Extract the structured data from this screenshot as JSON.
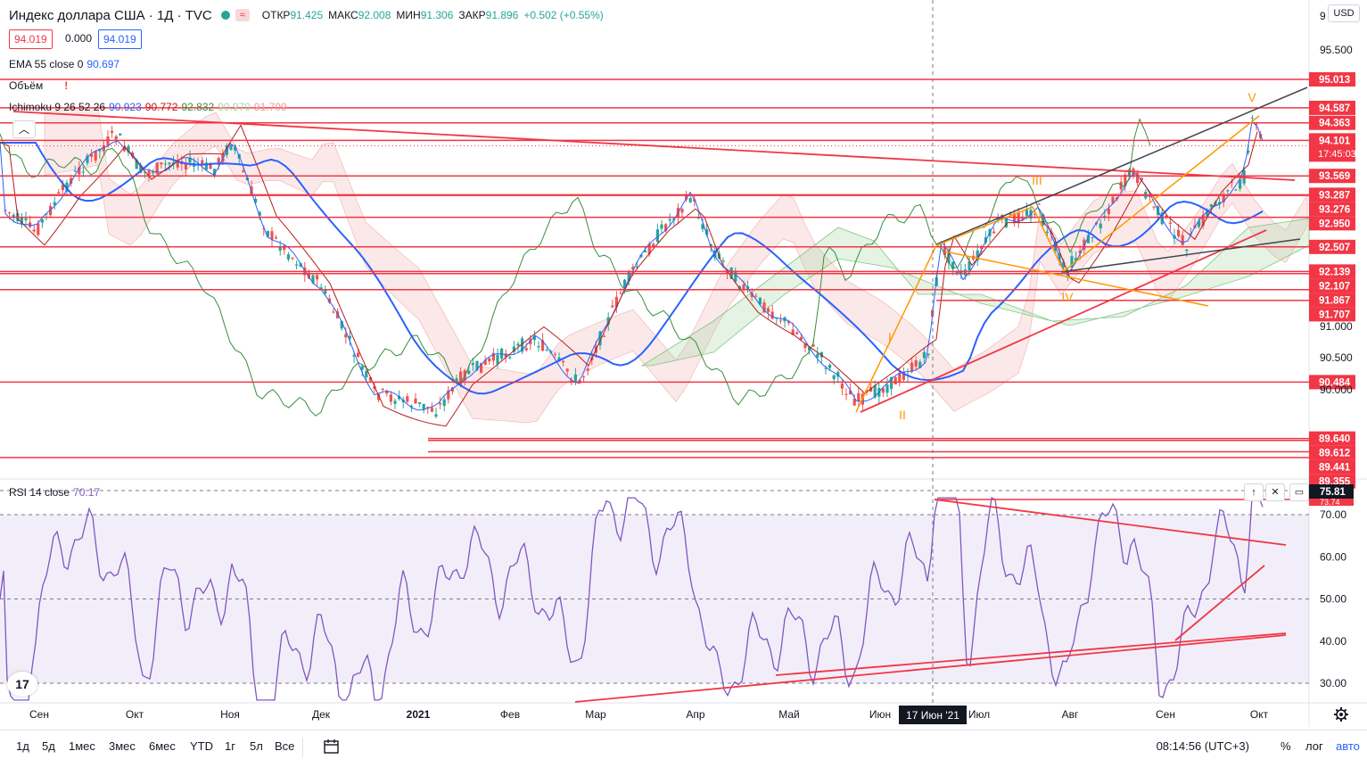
{
  "header": {
    "title": "Индекс доллара США · 1Д · TVC",
    "ohlc": [
      {
        "label": "ОТКР",
        "value": "91.425"
      },
      {
        "label": "МАКС",
        "value": "92.008"
      },
      {
        "label": "МИН",
        "value": "91.306"
      },
      {
        "label": "ЗАКР",
        "value": "91.896"
      },
      {
        "label": "",
        "value": "+0.502 (+0.55%)"
      }
    ],
    "bid": "94.019",
    "spread": "0.000",
    "ask": "94.019"
  },
  "legend": {
    "ema": {
      "name": "EMA 55 close 0",
      "value": "90.697"
    },
    "volume": {
      "name": "Объём",
      "warn": "!"
    },
    "ichimoku": {
      "name": "Ichimoku 9 26 52 26",
      "values": [
        "90.923",
        "90.772",
        "92.832",
        "90.970",
        "91.709"
      ]
    },
    "rsi": {
      "name": "RSI 14 close",
      "value": "70.17"
    }
  },
  "currency_button": "USD",
  "price_scale": {
    "ticks": [
      "95.500",
      "91.000",
      "90.500",
      "90.000"
    ],
    "top_partial": "9",
    "labels": [
      "95.013",
      "94.587",
      "94.363",
      "94.101",
      "94.019",
      "93.569",
      "93.287",
      "93.276",
      "92.950",
      "92.507",
      "92.139",
      "92.107",
      "91.867",
      "91.707",
      "90.484",
      "89.640",
      "89.612",
      "89.441",
      "89.355"
    ],
    "countdown": "17:45:03"
  },
  "rsi_scale": {
    "ticks": [
      "70.00",
      "60.00",
      "50.00",
      "40.00",
      "30.00"
    ],
    "current": "75.81",
    "partial": "73.74"
  },
  "time_axis": {
    "labels": [
      "Сен",
      "Окт",
      "Ноя",
      "Дек",
      "2021",
      "Фев",
      "Мар",
      "Апр",
      "Май",
      "Июн",
      "Июл",
      "Авг",
      "Сен",
      "Окт"
    ],
    "crosshair": "17 Июн '21"
  },
  "waves": [
    "I",
    "II",
    "III",
    "IV",
    "V"
  ],
  "bottom_bar": {
    "timeframes": [
      "1д",
      "5д",
      "1мес",
      "3мес",
      "6мес",
      "YTD",
      "1г",
      "5л",
      "Все"
    ],
    "clock": "08:14:56 (UTC+3)",
    "percent": "%",
    "log": "лог",
    "auto": "авто"
  },
  "colors": {
    "red": "#f23645",
    "orange": "#ff9800",
    "blue": "#2962ff",
    "green": "#388e3c",
    "maroon": "#b71c1c",
    "rsi": "#7e57c2"
  },
  "chart_data": {
    "type": "candlestick",
    "symbol": "Индекс доллара США",
    "timeframe": "1Д",
    "ohlc_last": {
      "open": 91.425,
      "high": 92.008,
      "low": 91.306,
      "close": 91.896,
      "change": 0.502,
      "change_pct": 0.55
    },
    "horizontal_levels": [
      95.013,
      94.587,
      94.363,
      94.101,
      93.569,
      93.287,
      93.276,
      92.95,
      92.507,
      92.139,
      92.107,
      91.867,
      91.707,
      90.484,
      89.64,
      89.612,
      89.441,
      89.355
    ],
    "current_price": 94.019,
    "rsi": {
      "period": 14,
      "value": 70.17,
      "levels": [
        30,
        50,
        70
      ]
    }
  }
}
